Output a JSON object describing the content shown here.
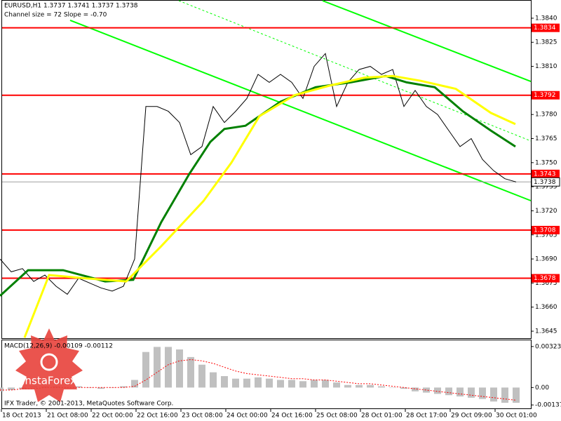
{
  "chart_data": [
    {
      "type": "line",
      "title": "EURUSD,H1  1.3737 1.3741 1.3737 1.3738",
      "subtitle": "Channel size = 72 Slope = -0.70",
      "xlim": [
        0,
        189.25
      ],
      "ylim": [
        1.36402,
        1.38509
      ],
      "xticks": [
        {
          "value": 0,
          "label": "18 Oct 2013"
        },
        {
          "value": 16,
          "label": "21 Oct 08:00"
        },
        {
          "value": 32,
          "label": "22 Oct 00:00"
        },
        {
          "value": 48,
          "label": "22 Oct 16:00"
        },
        {
          "value": 64,
          "label": "23 Oct 08:00"
        },
        {
          "value": 80,
          "label": "24 Oct 00:00"
        },
        {
          "value": 96,
          "label": "24 Oct 16:00"
        },
        {
          "value": 112,
          "label": "25 Oct 08:00"
        },
        {
          "value": 128,
          "label": "28 Oct 01:00"
        },
        {
          "value": 144,
          "label": "28 Oct 17:00"
        },
        {
          "value": 160,
          "label": "29 Oct 09:00"
        },
        {
          "value": 176,
          "label": "30 Oct 01:00"
        }
      ],
      "yticks": [
        {
          "value": 1.384,
          "label": "1.3840"
        },
        1.3825,
        {
          "value": 1.381,
          "label": "1.3810"
        },
        {
          "value": 1.378,
          "label": "1.3780"
        },
        1.3765,
        {
          "value": 1.375,
          "label": "1.3750"
        },
        1.3735,
        {
          "value": 1.372,
          "label": "1.3720"
        },
        1.3705,
        {
          "value": 1.369,
          "label": "1.3690"
        },
        1.3675,
        {
          "value": 1.366,
          "label": "1.3660"
        },
        1.3645
      ],
      "series": [
        {
          "color": "#000000",
          "x": [
            0,
            4,
            8,
            12,
            16,
            20,
            24,
            28,
            32,
            36,
            40,
            44,
            48,
            52,
            56,
            60,
            64,
            68,
            72,
            76,
            80,
            84,
            88,
            92,
            96,
            100,
            104,
            108,
            112,
            116,
            120,
            124,
            128,
            132,
            136,
            140,
            144,
            148,
            152,
            156,
            160,
            164,
            168,
            172,
            176,
            180,
            184
          ],
          "values": [
            1.369,
            1.3682,
            1.3684,
            1.3676,
            1.368,
            1.3673,
            1.3668,
            1.3678,
            1.3675,
            1.3672,
            1.367,
            1.3673,
            1.369,
            1.3785,
            1.3785,
            1.3782,
            1.3775,
            1.3755,
            1.376,
            1.3785,
            1.3775,
            1.3782,
            1.379,
            1.3805,
            1.38,
            1.3805,
            1.38,
            1.379,
            1.381,
            1.3818,
            1.3785,
            1.38,
            1.3808,
            1.381,
            1.3805,
            1.3808,
            1.3785,
            1.3795,
            1.3785,
            1.378,
            1.377,
            1.376,
            1.3765,
            1.3752,
            1.3745,
            1.374,
            1.3738
          ]
        },
        {
          "color": "#008000",
          "x": [
            0,
            10,
            22.5,
            37.5,
            47.5,
            57.5,
            67.5,
            75,
            80,
            87.5,
            100,
            112.5,
            125,
            137.5,
            145,
            155,
            165,
            175,
            183.75
          ],
          "values": [
            1.3667,
            1.3683,
            1.3683,
            1.3676,
            1.3677,
            1.3713,
            1.3743,
            1.3763,
            1.3771,
            1.3773,
            1.3788,
            1.3797,
            1.38,
            1.3804,
            1.38,
            1.3797,
            1.3782,
            1.377,
            1.376
          ]
        },
        {
          "color": "#ffff00",
          "x": [
            8.75,
            17.5,
            30,
            45,
            57.5,
            72.5,
            82.5,
            92.5,
            105,
            117.5,
            130,
            140,
            150,
            162.5,
            175,
            183.75
          ],
          "values": [
            1.3641,
            1.368,
            1.3678,
            1.3676,
            1.3698,
            1.3726,
            1.375,
            1.3779,
            1.3792,
            1.3798,
            1.3803,
            1.3804,
            1.3801,
            1.3796,
            1.3781,
            1.3774
          ]
        }
      ],
      "channel": [
        {
          "color": "#00ff00",
          "x": [
            25,
            189.25
          ],
          "values": [
            1.38387,
            1.37263
          ]
        },
        {
          "color": "#00ff00",
          "x": [
            115,
            189.25
          ],
          "values": [
            1.38509,
            1.38006
          ]
        },
        {
          "color": "#00ff00",
          "dashed": true,
          "x": [
            63.75,
            189.25
          ],
          "values": [
            1.38509,
            1.37635
          ]
        }
      ],
      "levels": [
        {
          "value": 1.3834,
          "color": "#ff0000"
        },
        {
          "value": 1.3792,
          "color": "#ff0000"
        },
        {
          "value": 1.3743,
          "color": "#ff0000"
        },
        {
          "value": 1.3708,
          "color": "#ff0000"
        },
        {
          "value": 1.3678,
          "color": "#ff0000"
        }
      ],
      "current_price": 1.3738
    },
    {
      "type": "bar",
      "title": "MACD(12,26,9) -0.00109 -0.00112",
      "xlim": [
        0,
        189.25
      ],
      "ylim": [
        -0.00164,
        0.00372
      ],
      "yticks": [
        0.00323,
        {
          "value": 0,
          "label": "0.00"
        },
        -0.00137
      ],
      "x": [
        0,
        4,
        8,
        12,
        16,
        20,
        24,
        28,
        32,
        36,
        40,
        44,
        48,
        52,
        56,
        60,
        64,
        68,
        72,
        76,
        80,
        84,
        88,
        92,
        96,
        100,
        104,
        108,
        112,
        116,
        120,
        124,
        128,
        132,
        136,
        140,
        144,
        148,
        152,
        156,
        160,
        164,
        168,
        172,
        176,
        180,
        184
      ],
      "values": [
        -0.0003,
        -0.0002,
        -0.0001,
        0.0001,
        0.0001,
        0.0001,
        0,
        0.0001,
        0,
        -0.0001,
        0,
        0.0001,
        0.0006,
        0.0028,
        0.0032,
        0.0032,
        0.003,
        0.0024,
        0.0018,
        0.0012,
        0.0009,
        0.0007,
        0.0007,
        0.0008,
        0.0007,
        0.0006,
        0.0006,
        0.0005,
        0.0006,
        0.0006,
        0.0004,
        0.0002,
        0.0002,
        0.0002,
        0.0001,
        0,
        -0.0001,
        -0.0003,
        -0.0004,
        -0.0005,
        -0.0006,
        -0.0007,
        -0.0008,
        -0.0009,
        -0.0011,
        -0.0012,
        -0.0012
      ],
      "color": "#c0c0c0",
      "signal": {
        "color": "#ff0000",
        "values": [
          -0.0002,
          -0.0002,
          -0.0001,
          -0.0001,
          0,
          0,
          0,
          0,
          0,
          0,
          0,
          0,
          0.0001,
          0.0006,
          0.0012,
          0.0018,
          0.0021,
          0.0022,
          0.0021,
          0.0019,
          0.0016,
          0.0013,
          0.0011,
          0.001,
          0.0009,
          0.0008,
          0.0007,
          0.0007,
          0.0006,
          0.0006,
          0.0005,
          0.0004,
          0.0003,
          0.0003,
          0.0002,
          0.0001,
          0,
          -0.0001,
          -0.0002,
          -0.0003,
          -0.0004,
          -0.0005,
          -0.0006,
          -0.0007,
          -0.0008,
          -0.0009,
          -0.001
        ]
      }
    }
  ],
  "watermark": "IFX Trader, © 2001-2013, MetaQuotes Software Corp.",
  "logo": "InstaForex"
}
